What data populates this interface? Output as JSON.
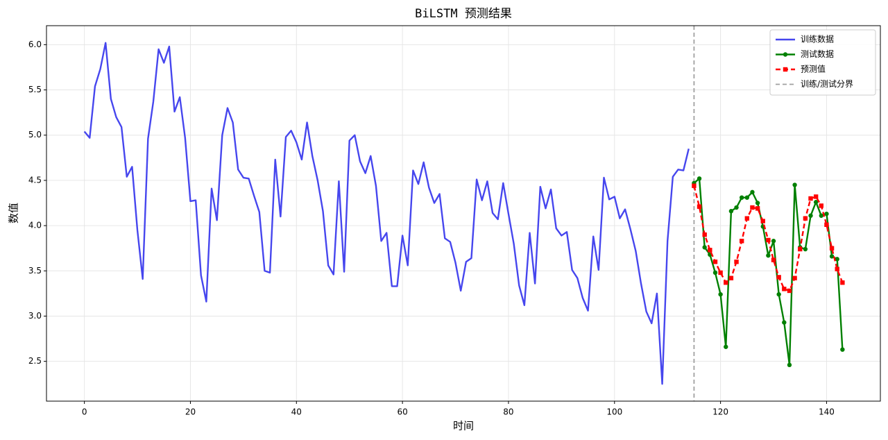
{
  "chart_data": {
    "type": "line",
    "title": "BiLSTM 预测结果",
    "x_label": "时间",
    "y_label": "数值",
    "xlim": [
      -7.15,
      150.15
    ],
    "ylim": [
      2.06,
      6.21
    ],
    "xticks": [
      0,
      20,
      40,
      60,
      80,
      100,
      120,
      140
    ],
    "yticks": [
      2.5,
      {
        "value": 3,
        "label": "3.0"
      },
      3.5,
      {
        "value": 4,
        "label": "4.0"
      },
      4.5,
      {
        "value": 5,
        "label": "5.0"
      },
      5.5,
      {
        "value": 6,
        "label": "6.0"
      }
    ],
    "grid": true,
    "legend": "upper right",
    "series": [
      {
        "name": "训练数据",
        "color": "#4646ee",
        "marker": null,
        "dash": false,
        "x": [
          0,
          1,
          2,
          3,
          4,
          5,
          6,
          7,
          8,
          9,
          10,
          11,
          12,
          13,
          14,
          15,
          16,
          17,
          18,
          19,
          20,
          21,
          22,
          23,
          24,
          25,
          26,
          27,
          28,
          29,
          30,
          31,
          32,
          33,
          34,
          35,
          36,
          37,
          38,
          39,
          40,
          41,
          42,
          43,
          44,
          45,
          46,
          47,
          48,
          49,
          50,
          51,
          52,
          53,
          54,
          55,
          56,
          57,
          58,
          59,
          60,
          61,
          62,
          63,
          64,
          65,
          66,
          67,
          68,
          69,
          70,
          71,
          72,
          73,
          74,
          75,
          76,
          77,
          78,
          79,
          80,
          81,
          82,
          83,
          84,
          85,
          86,
          87,
          88,
          89,
          90,
          91,
          92,
          93,
          94,
          95,
          96,
          97,
          98,
          99,
          100,
          101,
          102,
          103,
          104,
          105,
          106,
          107,
          108,
          109,
          110,
          111,
          112,
          113,
          114
        ],
        "values": [
          5.04,
          4.97,
          5.54,
          5.73,
          6.02,
          5.4,
          5.2,
          5.09,
          4.54,
          4.65,
          3.95,
          3.41,
          4.96,
          5.37,
          5.95,
          5.8,
          5.98,
          5.26,
          5.42,
          4.97,
          4.27,
          4.28,
          3.45,
          3.16,
          4.41,
          4.06,
          5.0,
          5.3,
          5.14,
          4.62,
          4.53,
          4.52,
          4.33,
          4.15,
          3.5,
          3.48,
          4.73,
          4.1,
          4.98,
          5.05,
          4.92,
          4.73,
          5.14,
          4.77,
          4.5,
          4.16,
          3.56,
          3.46,
          4.49,
          3.49,
          4.94,
          5.0,
          4.71,
          4.58,
          4.77,
          4.44,
          3.83,
          3.92,
          3.33,
          3.33,
          3.89,
          3.56,
          4.61,
          4.46,
          4.7,
          4.42,
          4.25,
          4.35,
          3.86,
          3.82,
          3.59,
          3.28,
          3.6,
          3.64,
          4.51,
          4.28,
          4.49,
          4.14,
          4.07,
          4.47,
          4.13,
          3.8,
          3.34,
          3.12,
          3.92,
          3.36,
          4.43,
          4.19,
          4.4,
          3.97,
          3.89,
          3.93,
          3.51,
          3.42,
          3.2,
          3.06,
          3.88,
          3.51,
          4.53,
          4.29,
          4.32,
          4.08,
          4.18,
          3.96,
          3.72,
          3.36,
          3.05,
          2.92,
          3.25,
          2.25,
          3.83,
          4.54,
          4.62,
          4.61,
          4.85
        ]
      },
      {
        "name": "测试数据",
        "color": "#008000",
        "marker": "circle",
        "dash": false,
        "x": [
          115,
          116,
          117,
          118,
          119,
          120,
          121,
          122,
          123,
          124,
          125,
          126,
          127,
          128,
          129,
          130,
          131,
          132,
          133,
          134,
          135,
          136,
          137,
          138,
          139,
          140,
          141,
          142,
          143
        ],
        "values": [
          4.47,
          4.52,
          3.76,
          3.68,
          3.48,
          3.24,
          2.66,
          4.16,
          4.2,
          4.31,
          4.31,
          4.37,
          4.25,
          3.99,
          3.67,
          3.83,
          3.24,
          2.93,
          2.46,
          4.45,
          3.76,
          3.74,
          4.11,
          4.26,
          4.11,
          4.13,
          3.66,
          3.63,
          2.63
        ]
      },
      {
        "name": "预测值",
        "color": "#ff0000",
        "marker": "square",
        "dash": true,
        "x": [
          115,
          116,
          117,
          118,
          119,
          120,
          121,
          122,
          123,
          124,
          125,
          126,
          127,
          128,
          129,
          130,
          131,
          132,
          133,
          134,
          135,
          136,
          137,
          138,
          139,
          140,
          141,
          142,
          143
        ],
        "values": [
          4.44,
          4.21,
          3.9,
          3.73,
          3.6,
          3.48,
          3.37,
          3.42,
          3.6,
          3.83,
          4.08,
          4.2,
          4.19,
          4.05,
          3.84,
          3.62,
          3.43,
          3.3,
          3.28,
          3.42,
          3.74,
          4.08,
          4.3,
          4.32,
          4.22,
          4.01,
          3.75,
          3.52,
          3.37
        ]
      }
    ],
    "vline": {
      "x": 115,
      "name": "训练/测试分界",
      "color": "#a0a0a0"
    }
  }
}
